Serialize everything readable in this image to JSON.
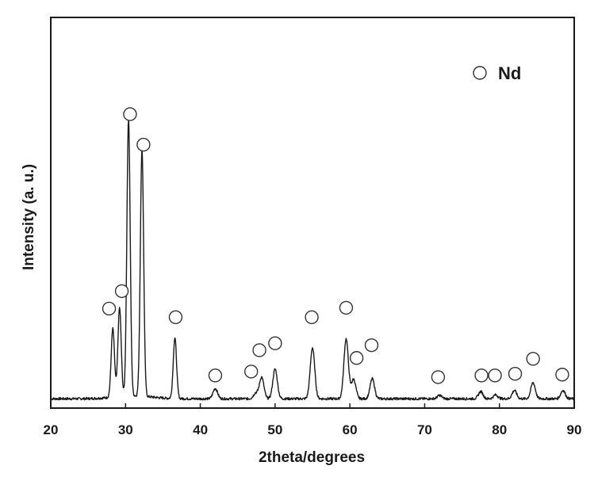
{
  "chart_data": {
    "type": "line",
    "title": "",
    "xlabel": "2theta/degrees",
    "ylabel": "Intensity (a. u.)",
    "xlim": [
      20,
      90
    ],
    "ylim": [
      0,
      100
    ],
    "x_ticks": [
      "20",
      "30",
      "40",
      "50",
      "60",
      "70",
      "80",
      "90"
    ],
    "y_ticks_shown": false,
    "grid": false,
    "legend": {
      "position": "top-right",
      "entries": [
        {
          "label": "Nd",
          "marker": "open-circle"
        }
      ]
    },
    "colors": {
      "line": "#1a1a1a",
      "marker_stroke": "#333333",
      "marker_fill": "#ffffff"
    },
    "series": [
      {
        "peaks": [
          {
            "x": 28.3,
            "y": 24.7
          },
          {
            "x": 29.2,
            "y": 32.0
          },
          {
            "x": 30.4,
            "y": 100
          },
          {
            "x": 32.2,
            "y": 89.0
          },
          {
            "x": 36.6,
            "y": 21.9
          },
          {
            "x": 42.0,
            "y": 3.7
          },
          {
            "x": 47.4,
            "y": 2.0
          },
          {
            "x": 48.2,
            "y": 7.8
          },
          {
            "x": 50.0,
            "y": 10.7
          },
          {
            "x": 55.0,
            "y": 18.4
          },
          {
            "x": 59.5,
            "y": 21.6
          },
          {
            "x": 60.5,
            "y": 7.0
          },
          {
            "x": 63.0,
            "y": 7.2
          },
          {
            "x": 72.0,
            "y": 1.2
          },
          {
            "x": 77.5,
            "y": 2.6
          },
          {
            "x": 79.5,
            "y": 1.4
          },
          {
            "x": 82.0,
            "y": 3.0
          },
          {
            "x": 84.5,
            "y": 5.8
          },
          {
            "x": 88.5,
            "y": 3.0
          }
        ]
      }
    ],
    "markers": {
      "label": "Nd",
      "points": [
        {
          "x": 27.8,
          "y": 33.3
        },
        {
          "x": 29.5,
          "y": 39.6
        },
        {
          "x": 30.6,
          "y": 103.4
        },
        {
          "x": 32.4,
          "y": 92.4
        },
        {
          "x": 36.7,
          "y": 30.2
        },
        {
          "x": 42.0,
          "y": 9.2
        },
        {
          "x": 46.8,
          "y": 10.6
        },
        {
          "x": 47.9,
          "y": 18.3
        },
        {
          "x": 50.0,
          "y": 20.8
        },
        {
          "x": 54.9,
          "y": 30.2
        },
        {
          "x": 59.5,
          "y": 33.6
        },
        {
          "x": 60.9,
          "y": 15.5
        },
        {
          "x": 62.9,
          "y": 20.1
        },
        {
          "x": 71.8,
          "y": 8.6
        },
        {
          "x": 77.6,
          "y": 9.2
        },
        {
          "x": 79.4,
          "y": 9.2
        },
        {
          "x": 82.1,
          "y": 9.8
        },
        {
          "x": 84.5,
          "y": 15.2
        },
        {
          "x": 88.4,
          "y": 9.5
        }
      ]
    }
  }
}
